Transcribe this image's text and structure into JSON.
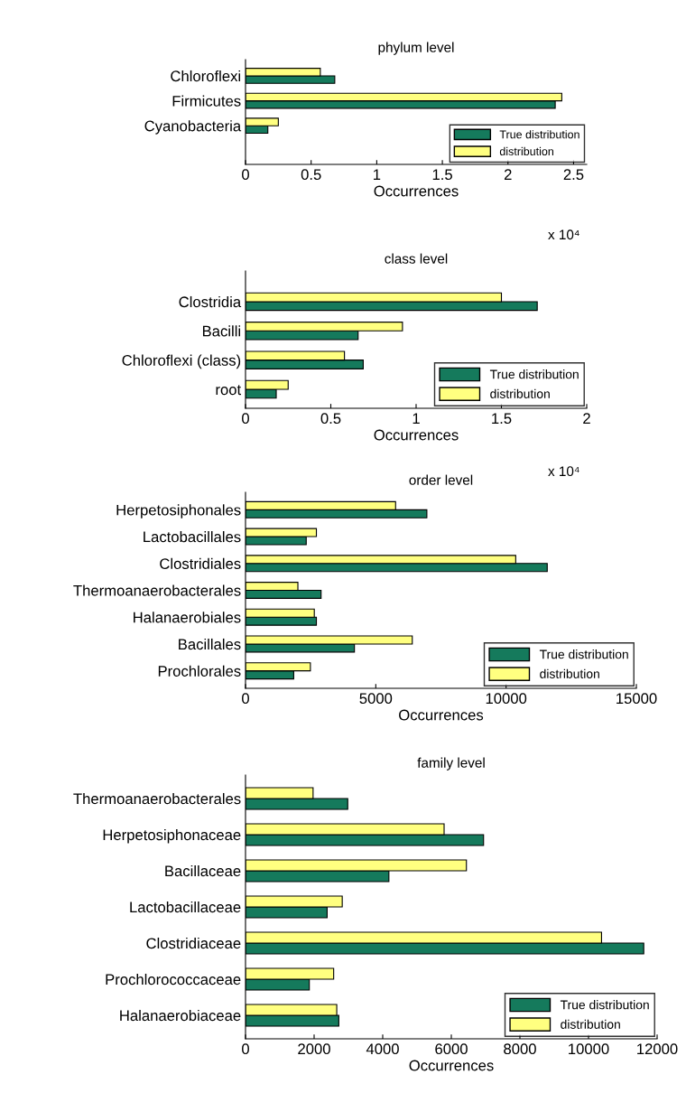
{
  "chart_data": [
    {
      "type": "bar",
      "orientation": "horizontal",
      "title": "phylum level",
      "xlabel": "Occurrences",
      "annotations": [
        "x 10⁴"
      ],
      "categories": [
        "Chloroflexi",
        "Firmicutes",
        "Cyanobacteria"
      ],
      "xlim": [
        0,
        2.6
      ],
      "xticks": [
        0,
        0.5,
        1,
        1.5,
        2,
        2.5
      ],
      "legend": "bottom right",
      "series": [
        {
          "name": "True distribution",
          "color": "#157a5c",
          "values": [
            0.68,
            2.36,
            0.17
          ]
        },
        {
          "name": "distribution",
          "color": "#ffff80",
          "values": [
            0.57,
            2.41,
            0.25
          ]
        }
      ]
    },
    {
      "type": "bar",
      "orientation": "horizontal",
      "title": "class level",
      "xlabel": "Occurrences",
      "annotations": [
        "x 10⁴"
      ],
      "categories": [
        "Clostridia",
        "Bacilli",
        "Chloroflexi (class)",
        "root"
      ],
      "xlim": [
        0,
        2
      ],
      "xticks": [
        0,
        0.5,
        1,
        1.5,
        2
      ],
      "legend": "bottom right",
      "series": [
        {
          "name": "True distribution",
          "color": "#157a5c",
          "values": [
            1.71,
            0.66,
            0.69,
            0.18
          ]
        },
        {
          "name": "distribution",
          "color": "#ffff80",
          "values": [
            1.5,
            0.92,
            0.58,
            0.25
          ]
        }
      ]
    },
    {
      "type": "bar",
      "orientation": "horizontal",
      "title": "order level",
      "xlabel": "Occurrences",
      "categories": [
        "Herpetosiphonales",
        "Lactobacillales",
        "Clostridiales",
        "Thermoanaerobacterales",
        "Halanaerobiales",
        "Bacillales",
        "Prochlorales"
      ],
      "xlim": [
        0,
        15000
      ],
      "xticks": [
        0,
        5000,
        10000,
        15000
      ],
      "legend": "bottom right",
      "series": [
        {
          "name": "True distribution",
          "color": "#157a5c",
          "values": [
            6960,
            2330,
            11580,
            2900,
            2720,
            4180,
            1850
          ]
        },
        {
          "name": "distribution",
          "color": "#ffff80",
          "values": [
            5760,
            2720,
            10370,
            2010,
            2640,
            6400,
            2490
          ]
        }
      ]
    },
    {
      "type": "bar",
      "orientation": "horizontal",
      "title": "family level",
      "xlabel": "Occurrences",
      "categories": [
        "Thermoanaerobacterales",
        "Herpetosiphonaceae",
        "Bacillaceae",
        "Lactobacillaceae",
        "Clostridiaceae",
        "Prochlorococcaceae",
        "Halanaerobiaceae"
      ],
      "xlim": [
        0,
        12000
      ],
      "xticks": [
        0,
        2000,
        4000,
        6000,
        8000,
        10000,
        12000
      ],
      "legend": "bottom right",
      "series": [
        {
          "name": "True distribution",
          "color": "#157a5c",
          "values": [
            2980,
            6940,
            4180,
            2380,
            11610,
            1860,
            2720
          ]
        },
        {
          "name": "distribution",
          "color": "#ffff80",
          "values": [
            1970,
            5790,
            6440,
            2820,
            10380,
            2570,
            2660
          ]
        }
      ]
    }
  ]
}
